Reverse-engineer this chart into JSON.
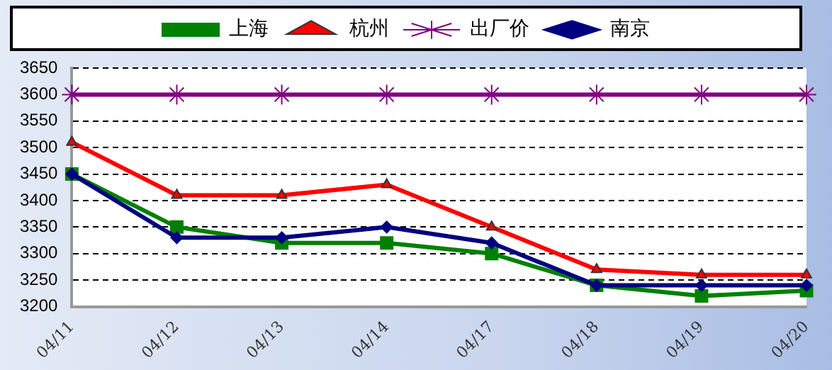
{
  "chart_data": {
    "type": "line",
    "categories": [
      "04/11",
      "04/12",
      "04/13",
      "04/14",
      "04/17",
      "04/18",
      "04/19",
      "04/20"
    ],
    "series": [
      {
        "name": "上海",
        "color": "#008000",
        "marker": "square",
        "values": [
          3450,
          3350,
          3320,
          3320,
          3300,
          3240,
          3220,
          3230
        ]
      },
      {
        "name": "杭州",
        "color": "#ff0000",
        "marker": "triangle",
        "values": [
          3510,
          3410,
          3410,
          3430,
          3350,
          3270,
          3260,
          3260
        ]
      },
      {
        "name": "出厂价",
        "color": "#800080",
        "marker": "cross",
        "values": [
          3600,
          3600,
          3600,
          3600,
          3600,
          3600,
          3600,
          3600
        ]
      },
      {
        "name": "南京",
        "color": "#000080",
        "marker": "diamond",
        "values": [
          3450,
          3330,
          3330,
          3350,
          3320,
          3240,
          3240,
          3240
        ]
      }
    ],
    "ylim": [
      3200,
      3650
    ],
    "yticks": [
      3200,
      3250,
      3300,
      3350,
      3400,
      3450,
      3500,
      3550,
      3600,
      3650
    ],
    "grid": "y",
    "legend": "top"
  }
}
